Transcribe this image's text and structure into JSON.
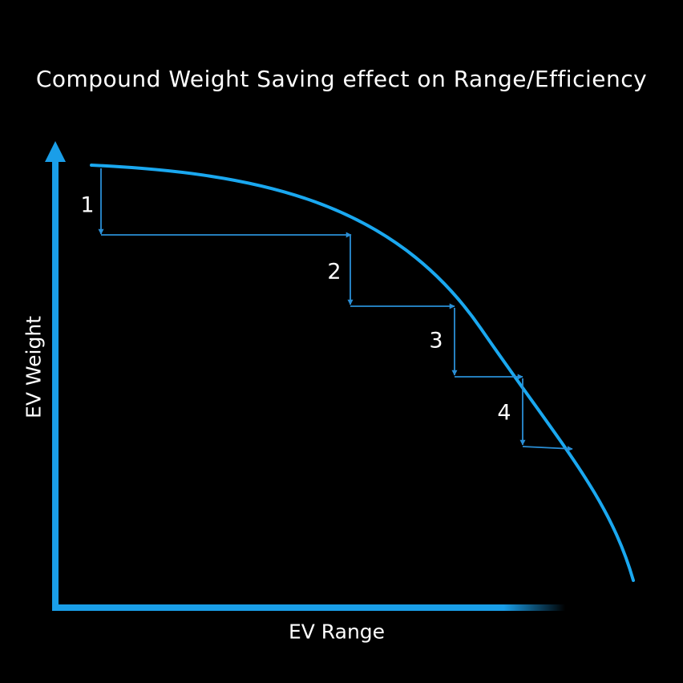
{
  "title": "Compound Weight Saving effect on Range/Efficiency",
  "axes": {
    "x_label": "EV Range",
    "y_label": "EV Weight"
  },
  "steps": [
    {
      "label": "1"
    },
    {
      "label": "2"
    },
    {
      "label": "3"
    },
    {
      "label": "4"
    }
  ],
  "colors": {
    "background": "#000000",
    "axis": "#1a9ee8",
    "curve": "#1aa8f0",
    "step_arrows": "#2a8fd6",
    "text": "#ffffff"
  }
}
